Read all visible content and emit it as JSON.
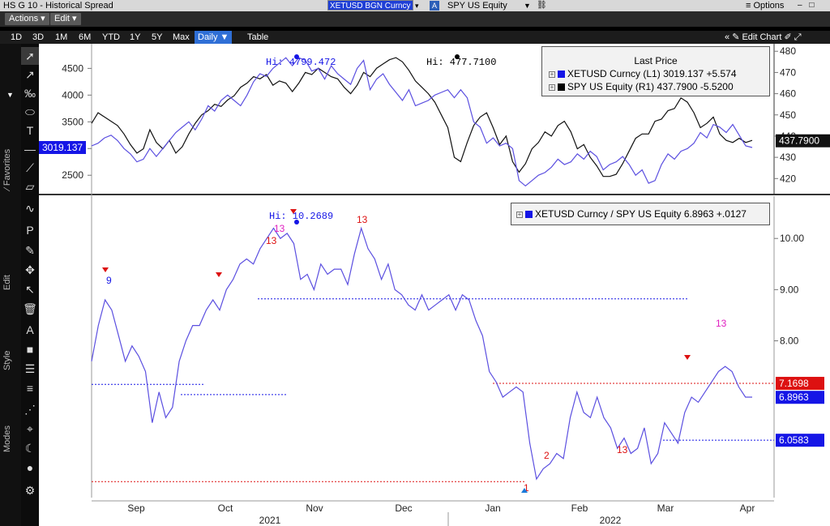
{
  "window": {
    "title": "HS G 10 - Historical Spread",
    "security1": "XETUSD BGN Curncy",
    "badge": "A",
    "security2": "SPY US Equity",
    "options_label": "Options",
    "window_buttons": "– □ ✕"
  },
  "actions": {
    "actions_label": "Actions",
    "edit_label": "Edit"
  },
  "ranges": [
    "1D",
    "3D",
    "1M",
    "6M",
    "YTD",
    "1Y",
    "5Y",
    "Max"
  ],
  "period": "Daily",
  "table_label": "Table",
  "edit_chart_label": "Edit Chart",
  "toolbar": {
    "favorites_label": "Favorites",
    "edit_label": "Edit",
    "style_label": "Style",
    "modes_label": "Modes"
  },
  "top_panel": {
    "legend": {
      "title": "Last Price",
      "rows": [
        {
          "name": "XETUSD Curncy",
          "axis": "(L1)",
          "value": "3019.137",
          "change": "+5.574",
          "color": "#1515e6"
        },
        {
          "name": "SPY US Equity",
          "axis": "(R1)",
          "value": "437.7900",
          "change": "-5.5200",
          "color": "#000000"
        }
      ]
    },
    "hi_eth": "Hi: 4799.472",
    "hi_spy": "Hi: 477.7100",
    "left_ticks": [
      "4500",
      "4000",
      "3500",
      "3000",
      "2500"
    ],
    "right_ticks": [
      "480",
      "470",
      "460",
      "450",
      "440",
      "430",
      "420"
    ],
    "left_tag": "3019.137",
    "right_tag": "437.7900"
  },
  "bottom_panel": {
    "legend": {
      "name": "XETUSD Curncy / SPY US Equity",
      "value": "6.8963",
      "change": "+.0127",
      "color": "#1515e6"
    },
    "hi": "Hi: 10.2689",
    "ticks": [
      "10.00",
      "9.00",
      "8.00"
    ],
    "tags": [
      {
        "value": "7.1698",
        "color": "#d11"
      },
      {
        "value": "6.8963",
        "color": "#1515e6"
      },
      {
        "value": "6.0583",
        "color": "#1515e6"
      }
    ],
    "td_labels": [
      "9",
      "13",
      "13",
      "13",
      "13",
      "1",
      "2",
      "13"
    ]
  },
  "x_axis": {
    "months": [
      "Sep",
      "Oct",
      "Nov",
      "Dec",
      "Jan",
      "Feb",
      "Mar",
      "Apr"
    ],
    "years": [
      "2021",
      "2022"
    ]
  },
  "chart_data": [
    {
      "type": "line",
      "series": [
        {
          "name": "XETUSD Curncy",
          "axis": "left",
          "color": "#5b4fe0",
          "values": [
            3050,
            3100,
            3200,
            3250,
            3150,
            3000,
            2900,
            2750,
            2800,
            3000,
            2850,
            3000,
            3150,
            3300,
            3400,
            3500,
            3350,
            3550,
            3800,
            3700,
            3900,
            4000,
            3900,
            3800,
            4000,
            4250,
            4400,
            4350,
            4500,
            4600,
            4700,
            4550,
            4700,
            4650,
            4450,
            4500,
            4300,
            4550,
            4400,
            4300,
            4200,
            4500,
            4650,
            4100,
            4300,
            4400,
            4200,
            4050,
            3900,
            4100,
            3800,
            3850,
            3900,
            4000,
            4050,
            4100,
            3950,
            4100,
            3950,
            3500,
            3400,
            3100,
            3200,
            3050,
            3100,
            3000,
            2400,
            2300,
            2400,
            2500,
            2550,
            2650,
            2800,
            2700,
            2750,
            2900,
            2800,
            2950,
            2850,
            2600,
            2700,
            2750,
            2850,
            2700,
            2500,
            2600,
            2350,
            2400,
            2700,
            2900,
            2800,
            2950,
            3000,
            3100,
            3300,
            3200,
            3450,
            3400,
            3300,
            3450,
            3250,
            3050,
            3019
          ]
        },
        {
          "name": "SPY US Equity",
          "axis": "right",
          "color": "#111111",
          "values": [
            446,
            451,
            449,
            447,
            445,
            441,
            436,
            432,
            434,
            443,
            437,
            434,
            438,
            432,
            435,
            441,
            446,
            450,
            452,
            455,
            454,
            457,
            459,
            463,
            465,
            468,
            467,
            469,
            464,
            466,
            465,
            461,
            465,
            470,
            469,
            472,
            470,
            468,
            467,
            463,
            460,
            464,
            470,
            468,
            472,
            474,
            476,
            477,
            475,
            471,
            466,
            463,
            460,
            456,
            450,
            444,
            430,
            428,
            437,
            445,
            449,
            451,
            444,
            436,
            440,
            428,
            423,
            427,
            434,
            437,
            442,
            440,
            445,
            447,
            442,
            434,
            436,
            430,
            426,
            421,
            421,
            422,
            427,
            433,
            439,
            441,
            441,
            447,
            448,
            452,
            453,
            458,
            456,
            451,
            444,
            446,
            449,
            441,
            438,
            437,
            439,
            437,
            438
          ]
        }
      ],
      "x_range": [
        "Aug 2021",
        "Apr 2022"
      ],
      "left_ylim": [
        2200,
        4900
      ],
      "right_ylim": [
        414,
        482
      ]
    },
    {
      "type": "line",
      "series": [
        {
          "name": "XETUSD Curncy / SPY US Equity",
          "color": "#5b4fe0",
          "values": [
            7.6,
            8.3,
            8.8,
            8.6,
            8.1,
            7.6,
            7.9,
            7.7,
            7.4,
            6.4,
            7.0,
            6.5,
            6.7,
            7.6,
            8.0,
            8.3,
            8.3,
            8.6,
            8.8,
            8.6,
            9.0,
            9.2,
            9.5,
            9.6,
            9.5,
            9.8,
            10.0,
            10.2,
            10.0,
            10.1,
            9.9,
            9.2,
            9.3,
            9.0,
            9.5,
            9.3,
            9.4,
            9.4,
            9.1,
            9.7,
            10.2,
            9.8,
            9.6,
            9.2,
            9.5,
            9.0,
            8.9,
            8.7,
            8.6,
            8.9,
            8.6,
            8.7,
            8.8,
            8.9,
            8.6,
            8.9,
            8.8,
            8.4,
            8.1,
            7.4,
            7.2,
            6.9,
            7.0,
            7.1,
            7.0,
            6.0,
            5.3,
            5.5,
            5.6,
            5.8,
            5.7,
            6.5,
            7.0,
            6.6,
            6.5,
            6.9,
            6.5,
            6.3,
            5.9,
            6.1,
            5.8,
            5.9,
            6.3,
            5.6,
            5.8,
            6.4,
            6.2,
            6.0,
            6.6,
            6.9,
            6.8,
            7.0,
            7.2,
            7.4,
            7.5,
            7.4,
            7.1,
            6.9,
            6.9
          ]
        }
      ],
      "x_range": [
        "Aug 2021",
        "Apr 2022"
      ],
      "ylim": [
        5.0,
        10.7
      ],
      "reference_lines": [
        7.1698,
        6.0583
      ]
    }
  ]
}
